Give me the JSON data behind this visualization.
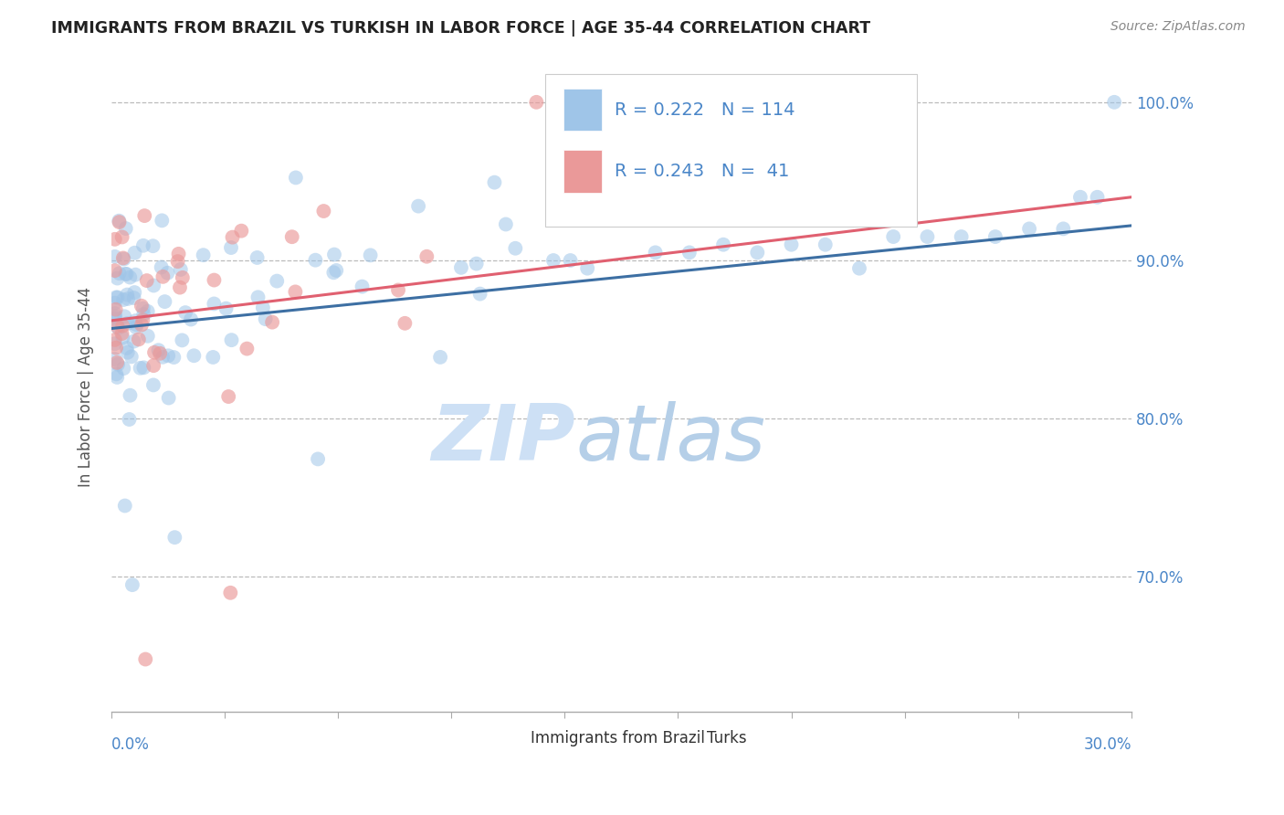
{
  "title": "IMMIGRANTS FROM BRAZIL VS TURKISH IN LABOR FORCE | AGE 35-44 CORRELATION CHART",
  "source": "Source: ZipAtlas.com",
  "ylabel": "In Labor Force | Age 35-44",
  "right_yticks": [
    0.7,
    0.8,
    0.9,
    1.0
  ],
  "right_yticklabels": [
    "70.0%",
    "80.0%",
    "90.0%",
    "100.0%"
  ],
  "xlim": [
    0.0,
    0.3
  ],
  "ylim": [
    0.615,
    1.025
  ],
  "blue_R": 0.222,
  "blue_N": 114,
  "pink_R": 0.243,
  "pink_N": 41,
  "blue_color": "#9fc5e8",
  "pink_color": "#ea9999",
  "blue_line_color": "#3d6fa3",
  "pink_line_color": "#e06070",
  "legend_text_color": "#4a86c8",
  "axis_label_color": "#4a86c8",
  "title_color": "#222222",
  "source_color": "#888888",
  "grid_color": "#bbbbbb",
  "watermark_zip_color": "#cde0f5",
  "watermark_atlas_color": "#b5cfe8",
  "scatter_alpha": 0.55,
  "scatter_size": 130,
  "line_width": 2.2,
  "legend_fontsize": 14,
  "axis_fontsize": 12,
  "title_fontsize": 12.5
}
